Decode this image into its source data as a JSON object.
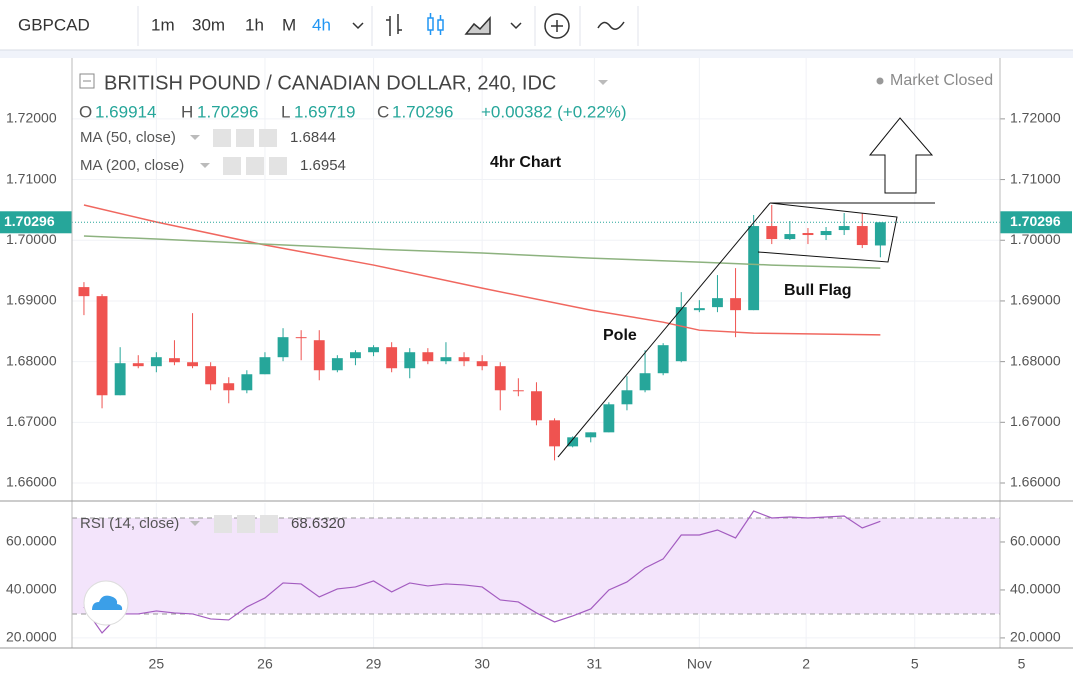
{
  "toolbar": {
    "symbol": "GBPCAD",
    "intervals": [
      "1m",
      "30m",
      "1h",
      "M",
      "4h"
    ]
  },
  "chart_data": [
    {
      "type": "candlestick",
      "title": "BRITISH POUND / CANADIAN DOLLAR, 240, IDC",
      "status": "Market Closed",
      "ohlc_labels": [
        "O",
        "H",
        "L",
        "C"
      ],
      "change": "+0.00382 (+0.22%)",
      "annotations": [
        "4hr Chart",
        "Pole",
        "Bull Flag"
      ],
      "up_color": "#26a69a",
      "down_color": "#ef5350",
      "grid": true,
      "x": [
        0,
        1,
        2,
        3,
        4,
        5,
        6,
        7,
        8,
        9,
        10,
        11,
        12,
        13,
        14,
        15,
        16,
        17,
        18,
        19,
        20,
        21,
        22,
        23,
        24,
        25,
        26,
        27,
        28,
        29,
        30,
        31,
        32,
        33,
        34,
        35,
        36,
        37,
        38,
        39,
        40,
        41,
        42,
        43,
        44
      ],
      "open": [
        1.69228,
        1.69079,
        1.67446,
        1.67974,
        1.67925,
        1.68057,
        1.6799,
        1.67925,
        1.67644,
        1.67528,
        1.67792,
        1.68073,
        1.68403,
        1.68353,
        1.67858,
        1.68057,
        1.68155,
        1.68238,
        1.67891,
        1.68155,
        1.68007,
        1.68073,
        1.68007,
        1.67925,
        1.67528,
        1.67512,
        1.67033,
        1.66604,
        1.66753,
        1.66835,
        1.67297,
        1.67528,
        1.67809,
        1.68007,
        1.68848,
        1.68898,
        1.69046,
        1.68848,
        1.70234,
        1.7002,
        1.70119,
        1.70086,
        1.70168,
        1.70234,
        1.69914
      ],
      "high": [
        1.6931,
        1.69112,
        1.68238,
        1.68106,
        1.68155,
        1.68353,
        1.68799,
        1.6799,
        1.67743,
        1.67858,
        1.68155,
        1.68551,
        1.68518,
        1.68518,
        1.68106,
        1.68188,
        1.68271,
        1.6832,
        1.68222,
        1.68222,
        1.6832,
        1.68155,
        1.68106,
        1.6799,
        1.67726,
        1.6766,
        1.67066,
        1.66769,
        1.66835,
        1.6733,
        1.6776,
        1.68188,
        1.68304,
        1.69145,
        1.69013,
        1.69426,
        1.69541,
        1.70416,
        1.70581,
        1.70317,
        1.70201,
        1.70218,
        1.70449,
        1.70449,
        1.70296
      ],
      "low": [
        1.68766,
        1.67231,
        1.67446,
        1.67891,
        1.67825,
        1.67941,
        1.67891,
        1.67528,
        1.67314,
        1.67479,
        1.67792,
        1.68007,
        1.68023,
        1.67693,
        1.67825,
        1.67941,
        1.6809,
        1.67825,
        1.67726,
        1.67958,
        1.67958,
        1.67925,
        1.67858,
        1.67198,
        1.6743,
        1.66951,
        1.66373,
        1.66588,
        1.6667,
        1.66835,
        1.67198,
        1.67495,
        1.67776,
        1.6799,
        1.68815,
        1.68815,
        1.68403,
        1.68848,
        1.69937,
        1.70003,
        1.69937,
        1.70003,
        1.70086,
        1.69871,
        1.69719
      ],
      "close": [
        1.69079,
        1.67446,
        1.67974,
        1.67925,
        1.68073,
        1.6799,
        1.67925,
        1.67627,
        1.67528,
        1.67792,
        1.68073,
        1.68403,
        1.68387,
        1.67858,
        1.68057,
        1.68155,
        1.68238,
        1.67891,
        1.68155,
        1.68007,
        1.68073,
        1.68007,
        1.67925,
        1.67528,
        1.67512,
        1.67033,
        1.66604,
        1.66753,
        1.66835,
        1.67297,
        1.67528,
        1.67809,
        1.68271,
        1.68898,
        1.68881,
        1.69046,
        1.68848,
        1.70234,
        1.7002,
        1.70102,
        1.70086,
        1.70152,
        1.70234,
        1.69921,
        1.70296
      ],
      "series": [
        {
          "name": "MA (50, close)",
          "last": "1.6844",
          "color": "#f0675f",
          "x": [
            0,
            4,
            10,
            16,
            22,
            28,
            32,
            34,
            37,
            44
          ],
          "values": [
            1.70581,
            1.703,
            1.69921,
            1.69591,
            1.69211,
            1.68848,
            1.6865,
            1.68518,
            1.68469,
            1.6844
          ]
        },
        {
          "name": "MA (200, close)",
          "last": "1.6954",
          "color": "#8db27f",
          "last_color": "#3f7f2f",
          "x": [
            0,
            4,
            10,
            16,
            22,
            28,
            34,
            38,
            44
          ],
          "values": [
            1.7007,
            1.7002,
            1.69937,
            1.69855,
            1.69789,
            1.69706,
            1.6964,
            1.69591,
            1.6954
          ]
        }
      ],
      "xlim": [
        -0.66,
        50.61
      ],
      "ylim": [
        1.6572,
        1.7297
      ],
      "yticks": [
        {
          "value": 1.66,
          "label": "1.66000"
        },
        {
          "value": 1.67,
          "label": "1.67000"
        },
        {
          "value": 1.68,
          "label": "1.68000"
        },
        {
          "value": 1.69,
          "label": "1.69000"
        },
        {
          "value": 1.7,
          "label": "1.70000"
        },
        {
          "value": 1.71,
          "label": "1.71000"
        },
        {
          "value": 1.72,
          "label": "1.72000"
        }
      ]
    },
    {
      "type": "line",
      "title": "RSI (14, close)",
      "last": "68.6320",
      "color": "#a35cc0",
      "band": [
        30,
        70
      ],
      "band_color": "#f3e4fb",
      "x": [
        0,
        1,
        2,
        3,
        4,
        5,
        6,
        7,
        8,
        9,
        10,
        11,
        12,
        13,
        14,
        15,
        16,
        17,
        18,
        19,
        20,
        21,
        22,
        23,
        24,
        25,
        26,
        27,
        28,
        29,
        30,
        31,
        32,
        33,
        34,
        35,
        36,
        37,
        38,
        39,
        40,
        41,
        42,
        43,
        44
      ],
      "values": [
        32.92,
        22.08,
        30,
        30,
        31.25,
        30.42,
        30,
        27.92,
        27.5,
        32.92,
        36.67,
        42.92,
        42.5,
        37.08,
        40.42,
        41.25,
        43.75,
        39.17,
        42.92,
        41.67,
        42.5,
        42.08,
        41.25,
        35.83,
        35,
        30.42,
        26.67,
        29.17,
        32.08,
        40,
        43.33,
        49.17,
        52.92,
        62.92,
        62.92,
        65,
        61.67,
        72.92,
        70,
        70.42,
        70,
        70.42,
        70.83,
        65.83,
        68.632
      ],
      "xlim": [
        -0.66,
        50.61
      ],
      "ylim": [
        15.8,
        76.25
      ],
      "yticks": [
        {
          "value": 20,
          "label": "20.0000"
        },
        {
          "value": 40,
          "label": "40.0000"
        },
        {
          "value": 60,
          "label": "60.0000"
        }
      ],
      "xticks": [
        {
          "value": 4,
          "label": "25"
        },
        {
          "value": 10,
          "label": "26"
        },
        {
          "value": 16,
          "label": "29"
        },
        {
          "value": 22,
          "label": "30"
        },
        {
          "value": 28.2,
          "label": "31"
        },
        {
          "value": 34,
          "label": "Nov"
        },
        {
          "value": 39.9,
          "label": "2"
        },
        {
          "value": 45.9,
          "label": "5"
        },
        {
          "value": 51.8,
          "label": "5"
        }
      ]
    }
  ]
}
